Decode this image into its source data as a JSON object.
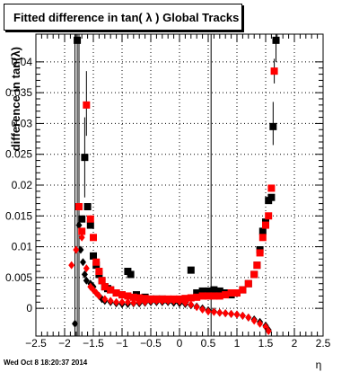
{
  "footer": {
    "timestamp": "Wed Oct  8 18:20:37 2014"
  },
  "chart_data": {
    "type": "scatter",
    "title": "Fitted difference in tan( λ )  Global Tracks",
    "xlabel": "η",
    "ylabel": "difference in tan(λ)",
    "xlim": [
      -2.5,
      2.5
    ],
    "ylim": [
      -0.0045,
      0.0445
    ],
    "xticks": [
      -2.5,
      -2,
      -1.5,
      -1,
      -0.5,
      0,
      0.5,
      1,
      1.5,
      2,
      2.5
    ],
    "xtick_labels": [
      "−2.5",
      "−2",
      "−1.5",
      "−1",
      "−0.5",
      "0",
      "0.5",
      "1",
      "1.5",
      "2",
      "2.5"
    ],
    "yticks": [
      0,
      0.005,
      0.01,
      0.015,
      0.02,
      0.025,
      0.03,
      0.035,
      0.04
    ],
    "ytick_labels": [
      "0",
      "0.005",
      "0.01",
      "0.015",
      "0.02",
      "0.025",
      "0.03",
      "0.035",
      "0.04"
    ],
    "grid": true,
    "vertical_lines": [
      -1.75,
      0.55
    ],
    "series": [
      {
        "color": "#000000",
        "marker": "diamond",
        "points": [
          [
            -1.82,
            -0.0025
          ],
          [
            -1.75,
            0.0135
          ],
          [
            -1.72,
            0.0095
          ],
          [
            -1.68,
            0.0075
          ],
          [
            -1.65,
            0.0055
          ],
          [
            -1.62,
            0.0045
          ],
          [
            -1.55,
            0.004
          ],
          [
            -1.5,
            0.0035
          ],
          [
            -1.45,
            0.0025
          ],
          [
            -1.4,
            0.002
          ],
          [
            -1.35,
            0.0015
          ],
          [
            -1.3,
            0.0012
          ],
          [
            -1.2,
            0.001
          ],
          [
            -1.1,
            0.0008
          ],
          [
            -1.0,
            0.0007
          ],
          [
            -0.9,
            0.0007
          ],
          [
            -0.8,
            0.0008
          ],
          [
            -0.7,
            0.0008
          ],
          [
            -0.6,
            0.0009
          ],
          [
            -0.5,
            0.001
          ],
          [
            -0.4,
            0.001
          ],
          [
            -0.3,
            0.001
          ],
          [
            -0.2,
            0.001
          ],
          [
            -0.1,
            0.0009
          ],
          [
            0.0,
            0.0008
          ],
          [
            0.1,
            0.0007
          ],
          [
            0.2,
            0.0005
          ],
          [
            0.3,
            0.0003
          ],
          [
            0.4,
            0.0
          ],
          [
            0.5,
            -0.0003
          ],
          [
            0.6,
            -0.0005
          ],
          [
            0.7,
            -0.0007
          ],
          [
            0.8,
            -0.0008
          ],
          [
            0.9,
            -0.0009
          ],
          [
            1.0,
            -0.001
          ],
          [
            1.1,
            -0.0012
          ],
          [
            1.2,
            -0.0015
          ],
          [
            1.3,
            -0.0018
          ],
          [
            1.4,
            -0.0022
          ],
          [
            1.5,
            -0.0028
          ],
          [
            1.55,
            -0.0035
          ]
        ]
      },
      {
        "color": "#000000",
        "marker": "square",
        "points": [
          [
            -1.78,
            0.0435
          ],
          [
            -1.7,
            0.0145
          ],
          [
            -1.65,
            0.0245
          ],
          [
            -1.6,
            0.0165
          ],
          [
            -1.55,
            0.0135
          ],
          [
            -1.5,
            0.0085
          ],
          [
            -1.45,
            0.007
          ],
          [
            -1.4,
            0.0055
          ],
          [
            -1.35,
            0.0045
          ],
          [
            -1.3,
            0.0035
          ],
          [
            -1.25,
            0.0032
          ],
          [
            -1.2,
            0.003
          ],
          [
            -1.1,
            0.0025
          ],
          [
            -1.0,
            0.0022
          ],
          [
            -0.9,
            0.006
          ],
          [
            -0.85,
            0.0055
          ],
          [
            -0.75,
            0.0022
          ],
          [
            -0.6,
            0.0018
          ],
          [
            -0.5,
            0.0015
          ],
          [
            -0.4,
            0.0015
          ],
          [
            -0.3,
            0.0015
          ],
          [
            -0.2,
            0.0014
          ],
          [
            -0.1,
            0.0014
          ],
          [
            0.0,
            0.0014
          ],
          [
            0.1,
            0.0015
          ],
          [
            0.2,
            0.0062
          ],
          [
            0.3,
            0.0025
          ],
          [
            0.4,
            0.0028
          ],
          [
            0.5,
            0.0028
          ],
          [
            0.6,
            0.003
          ],
          [
            0.7,
            0.0028
          ],
          [
            0.8,
            0.0025
          ],
          [
            0.9,
            0.0022
          ],
          [
            1.0,
            0.0025
          ],
          [
            1.1,
            0.003
          ],
          [
            1.2,
            0.004
          ],
          [
            1.3,
            0.0055
          ],
          [
            1.35,
            0.007
          ],
          [
            1.4,
            0.0095
          ],
          [
            1.45,
            0.0125
          ],
          [
            1.5,
            0.014
          ],
          [
            1.55,
            0.0175
          ],
          [
            1.6,
            0.018
          ],
          [
            1.63,
            0.0295
          ],
          [
            1.68,
            0.0435
          ]
        ]
      },
      {
        "color": "#ff0000",
        "marker": "diamond",
        "points": [
          [
            -1.88,
            0.007
          ],
          [
            -1.8,
            0.0095
          ],
          [
            -1.75,
            0.0165
          ],
          [
            -1.7,
            0.0115
          ],
          [
            -1.62,
            0.0065
          ],
          [
            -1.55,
            0.0035
          ],
          [
            -1.5,
            0.003
          ],
          [
            -1.45,
            0.0025
          ],
          [
            -1.4,
            0.002
          ],
          [
            -1.3,
            0.0015
          ],
          [
            -1.2,
            0.0012
          ],
          [
            -1.1,
            0.001
          ],
          [
            -1.0,
            0.001
          ],
          [
            -0.9,
            0.001
          ],
          [
            -0.8,
            0.0009
          ],
          [
            -0.7,
            0.001
          ],
          [
            -0.6,
            0.001
          ],
          [
            -0.5,
            0.0012
          ],
          [
            -0.4,
            0.0012
          ],
          [
            -0.3,
            0.0012
          ],
          [
            -0.2,
            0.0012
          ],
          [
            -0.1,
            0.0012
          ],
          [
            0.0,
            0.0011
          ],
          [
            0.1,
            0.0009
          ],
          [
            0.2,
            0.0006
          ],
          [
            0.3,
            0.0002
          ],
          [
            0.4,
            -0.0002
          ],
          [
            0.5,
            -0.0005
          ],
          [
            0.6,
            -0.0006
          ],
          [
            0.7,
            -0.0007
          ],
          [
            0.8,
            -0.0008
          ],
          [
            0.9,
            -0.0009
          ],
          [
            1.0,
            -0.001
          ],
          [
            1.1,
            -0.0012
          ],
          [
            1.2,
            -0.0015
          ],
          [
            1.3,
            -0.002
          ],
          [
            1.4,
            -0.0025
          ],
          [
            1.5,
            -0.003
          ],
          [
            1.55,
            -0.0037
          ]
        ]
      },
      {
        "color": "#ff0000",
        "marker": "square",
        "points": [
          [
            -1.75,
            0.0165
          ],
          [
            -1.7,
            0.0125
          ],
          [
            -1.62,
            0.033
          ],
          [
            -1.55,
            0.0145
          ],
          [
            -1.5,
            0.0115
          ],
          [
            -1.45,
            0.0075
          ],
          [
            -1.4,
            0.006
          ],
          [
            -1.35,
            0.0045
          ],
          [
            -1.3,
            0.0035
          ],
          [
            -1.2,
            0.003
          ],
          [
            -1.1,
            0.0025
          ],
          [
            -1.0,
            0.0022
          ],
          [
            -0.9,
            0.002
          ],
          [
            -0.8,
            0.0018
          ],
          [
            -0.7,
            0.0017
          ],
          [
            -0.6,
            0.0016
          ],
          [
            -0.5,
            0.0015
          ],
          [
            -0.4,
            0.0015
          ],
          [
            -0.3,
            0.0015
          ],
          [
            -0.2,
            0.0015
          ],
          [
            -0.1,
            0.0015
          ],
          [
            0.0,
            0.0015
          ],
          [
            0.1,
            0.0016
          ],
          [
            0.2,
            0.0017
          ],
          [
            0.3,
            0.0018
          ],
          [
            0.4,
            0.002
          ],
          [
            0.5,
            0.002
          ],
          [
            0.6,
            0.002
          ],
          [
            0.7,
            0.002
          ],
          [
            0.8,
            0.0022
          ],
          [
            0.9,
            0.0025
          ],
          [
            1.0,
            0.0025
          ],
          [
            1.1,
            0.003
          ],
          [
            1.2,
            0.004
          ],
          [
            1.3,
            0.0055
          ],
          [
            1.35,
            0.007
          ],
          [
            1.4,
            0.009
          ],
          [
            1.45,
            0.0115
          ],
          [
            1.5,
            0.0135
          ],
          [
            1.55,
            0.015
          ],
          [
            1.6,
            0.0195
          ],
          [
            1.65,
            0.0385
          ]
        ]
      }
    ],
    "error_bars": [
      {
        "x": -1.82,
        "y": -0.0025,
        "lo": -0.0045,
        "hi": 0.0445
      },
      {
        "x": -1.78,
        "y": 0.0435,
        "lo": -0.0045,
        "hi": 0.0445
      },
      {
        "x": -1.75,
        "y": 0.0165,
        "lo": -0.0045,
        "hi": 0.0445
      },
      {
        "x": -1.62,
        "y": 0.033,
        "lo": 0.028,
        "hi": 0.0385
      },
      {
        "x": -1.65,
        "y": 0.0245,
        "lo": 0.018,
        "hi": 0.031
      },
      {
        "x": 1.63,
        "y": 0.0295,
        "lo": 0.0265,
        "hi": 0.0335
      },
      {
        "x": 1.65,
        "y": 0.0385,
        "lo": 0.0365,
        "hi": 0.0405
      },
      {
        "x": 1.68,
        "y": 0.0435,
        "lo": 0.04,
        "hi": 0.0445
      }
    ]
  }
}
